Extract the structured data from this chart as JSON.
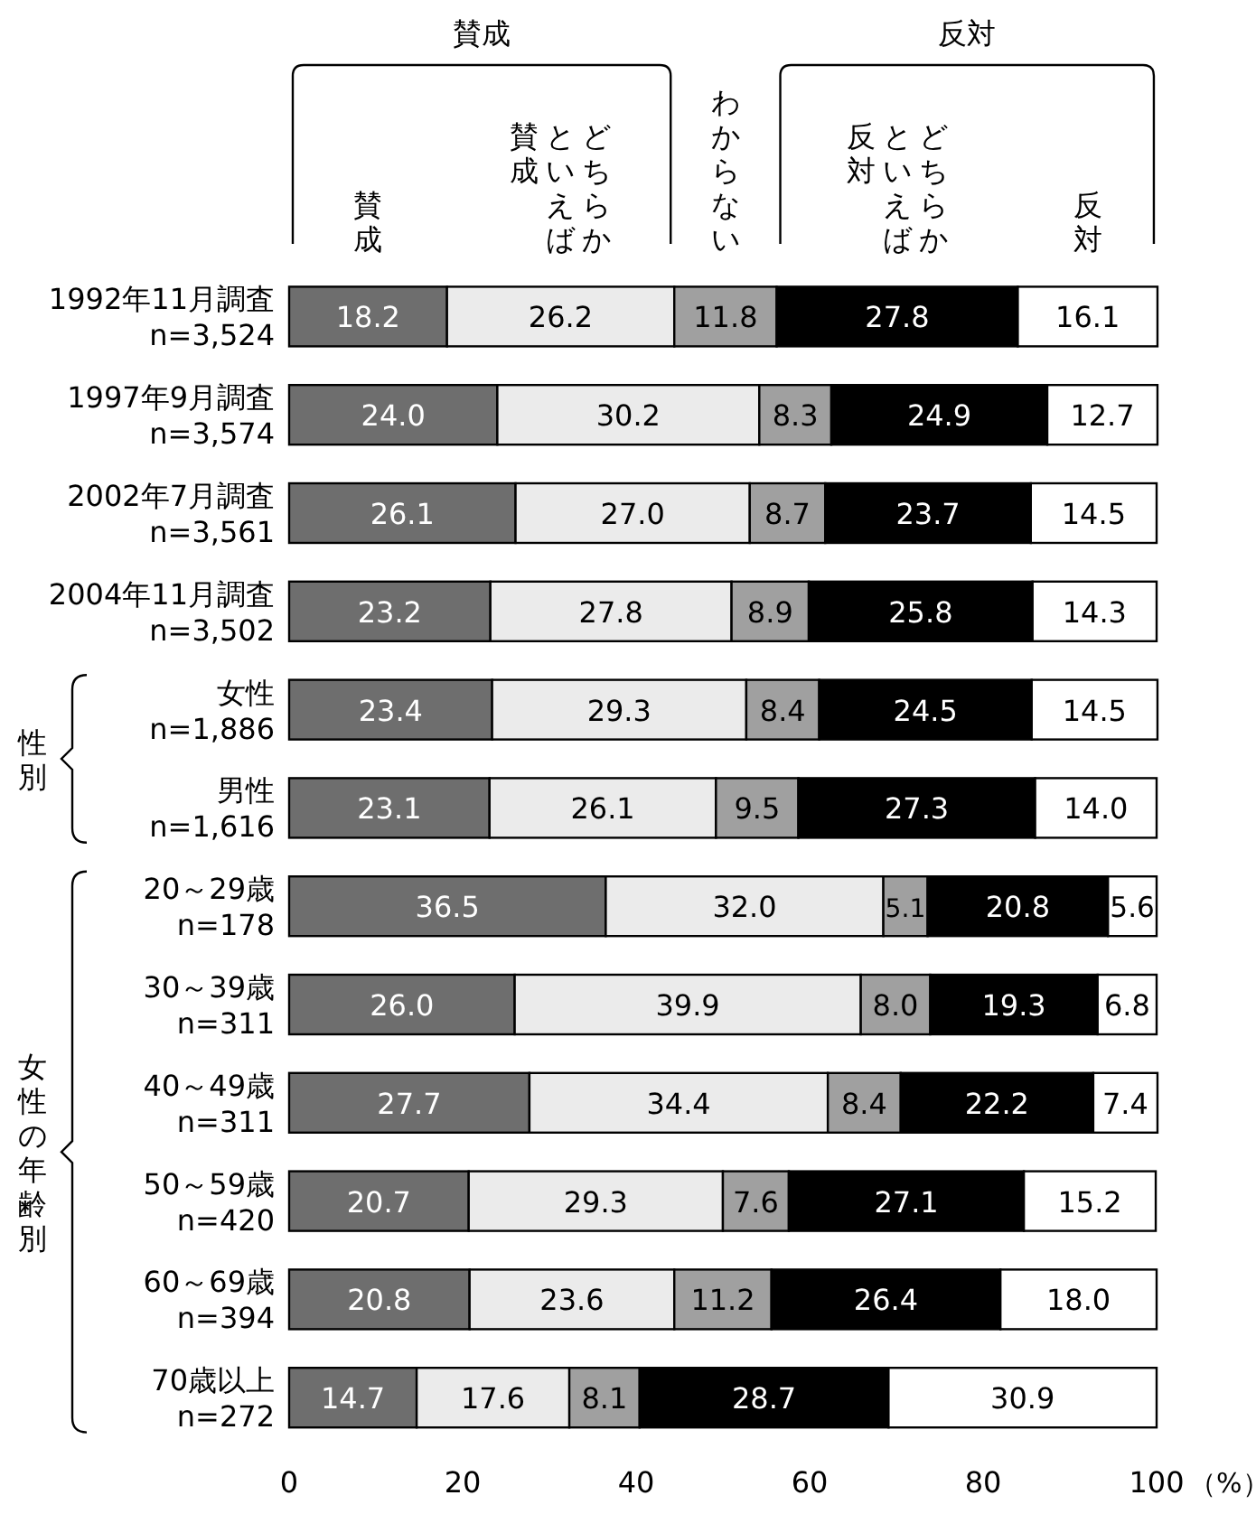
{
  "chart_data": {
    "type": "bar",
    "orientation": "horizontal",
    "stacked": true,
    "legend": "top",
    "grid": false,
    "categories": [
      "1992年11月調査\nn=3,524",
      "1997年9月調査\nn=3,574",
      "2002年7月調査\nn=3,561",
      "2004年11月調査\nn=3,502",
      "女性\nn=1,886",
      "男性\nn=1,616",
      "20～29歳\nn=178",
      "30～39歳\nn=311",
      "40～49歳\nn=311",
      "50～59歳\nn=420",
      "60～69歳\nn=394",
      "70歳以上\nn=272"
    ],
    "series": [
      {
        "name": "賛成",
        "color": "#6e6e6e",
        "values": [
          18.2,
          24.0,
          26.1,
          23.2,
          23.4,
          23.1,
          36.5,
          26.0,
          27.7,
          20.7,
          20.8,
          14.7
        ],
        "value_labels": [
          "18.2",
          "24.0",
          "26.1",
          "23.2",
          "23.4",
          "23.1",
          "36.5",
          "26.0",
          "27.7",
          "20.7",
          "20.8",
          "14.7"
        ]
      },
      {
        "name": "どちらかといえば賛成",
        "color": "#ebebeb",
        "values": [
          26.2,
          30.2,
          27.0,
          27.8,
          29.3,
          26.1,
          32.0,
          39.9,
          34.4,
          29.3,
          23.6,
          17.6
        ],
        "value_labels": [
          "26.2",
          "30.2",
          "27.0",
          "27.8",
          "29.3",
          "26.1",
          "32.0",
          "39.9",
          "34.4",
          "29.3",
          "23.6",
          "17.6"
        ]
      },
      {
        "name": "わからない",
        "color": "#a0a0a0",
        "values": [
          11.8,
          8.3,
          8.7,
          8.9,
          8.4,
          9.5,
          5.1,
          8.0,
          8.4,
          7.6,
          11.2,
          8.1
        ],
        "value_labels": [
          "11.8",
          "8.3",
          "8.7",
          "8.9",
          "8.4",
          "9.5",
          "5.1",
          "8.0",
          "8.4",
          "7.6",
          "11.2",
          "8.1"
        ]
      },
      {
        "name": "どちらかといえば反対",
        "color": "#000000",
        "values": [
          27.8,
          24.9,
          23.7,
          25.8,
          24.5,
          27.3,
          20.8,
          19.3,
          22.2,
          27.1,
          26.4,
          28.7
        ],
        "value_labels": [
          "27.8",
          "24.9",
          "23.7",
          "25.8",
          "24.5",
          "27.3",
          "20.8",
          "19.3",
          "22.2",
          "27.1",
          "26.4",
          "28.7"
        ]
      },
      {
        "name": "反対",
        "color": "#ffffff",
        "values": [
          16.1,
          12.7,
          14.5,
          14.3,
          14.5,
          14.0,
          5.6,
          6.8,
          7.4,
          15.2,
          18.0,
          30.9
        ],
        "value_labels": [
          "16.1",
          "12.7",
          "14.5",
          "14.3",
          "14.5",
          "14.0",
          "5.6",
          "6.8",
          "7.4",
          "15.2",
          "18.0",
          "30.9"
        ]
      }
    ],
    "xlim": [
      0,
      100
    ],
    "xticks": [
      0,
      20,
      40,
      60,
      80,
      100
    ],
    "xlabel": "（%）",
    "annotations": [
      "賛成",
      "反対",
      "性別",
      "女性の年齢別"
    ]
  }
}
